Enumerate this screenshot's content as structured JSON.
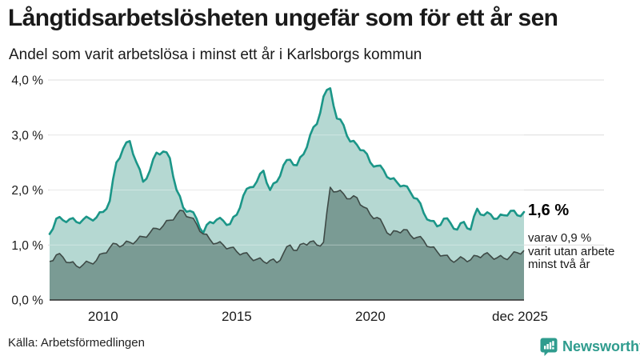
{
  "header": {
    "title": "Långtidsarbetslösheten ungefär som för ett år sen",
    "subtitle": "Andel som varit arbetslösa i minst ett år i Karlsborgs kommun"
  },
  "annotations": {
    "latest_value": "1,6 %",
    "secondary_line1": "varav 0,9 %",
    "secondary_line2": "varit utan arbete",
    "secondary_line3": "minst två år"
  },
  "footer": {
    "source": "Källa: Arbetsförmedlingen",
    "brand": "Newsworthy"
  },
  "colors": {
    "accent_teal": "#1b9688",
    "area_light": "#b5d8d2",
    "area_dark": "#7a9b94",
    "line_dark": "#3e4a46",
    "grid": "#dcdcdc",
    "grid_over_fill": "rgba(255,255,255,0.35)",
    "baseline": "#2d2d2d",
    "text": "#1a1a1a",
    "brand_teal": "#2f9c8e"
  },
  "chart_data": {
    "type": "area",
    "title": "Andel som varit arbetslösa i minst ett år i Karlsborgs kommun",
    "x_start_year": 2008.0,
    "x_step_years": 0.25,
    "ylim": [
      0,
      4
    ],
    "grid": true,
    "legend_position": "none",
    "yticks": [
      {
        "value": 0,
        "label": "0,0 %"
      },
      {
        "value": 1,
        "label": "1,0 %"
      },
      {
        "value": 2,
        "label": "2,0 %"
      },
      {
        "value": 3,
        "label": "3,0 %"
      },
      {
        "value": 4,
        "label": "4,0 %"
      }
    ],
    "xticks": [
      {
        "year": 2010.0,
        "label": "2010"
      },
      {
        "year": 2015.0,
        "label": "2015"
      },
      {
        "year": 2020.0,
        "label": "2020"
      },
      {
        "year": 2025.7,
        "label": "dec 2025"
      }
    ],
    "series": [
      {
        "name": "Andel arbetslösa minst ett år",
        "end_label": "1,6 %",
        "values": [
          1.2,
          1.48,
          1.45,
          1.47,
          1.42,
          1.46,
          1.48,
          1.5,
          1.6,
          1.8,
          2.5,
          2.75,
          2.89,
          2.5,
          2.15,
          2.35,
          2.68,
          2.7,
          2.58,
          2.0,
          1.68,
          1.62,
          1.48,
          1.22,
          1.42,
          1.46,
          1.44,
          1.38,
          1.55,
          1.9,
          2.05,
          2.15,
          2.35,
          2.0,
          2.15,
          2.45,
          2.55,
          2.45,
          2.65,
          3.0,
          3.2,
          3.7,
          3.85,
          3.3,
          3.18,
          2.88,
          2.82,
          2.72,
          2.5,
          2.44,
          2.36,
          2.2,
          2.14,
          2.08,
          1.96,
          1.84,
          1.58,
          1.44,
          1.34,
          1.48,
          1.4,
          1.28,
          1.42,
          1.28,
          1.66,
          1.54,
          1.56,
          1.48,
          1.54,
          1.62,
          1.54,
          1.6
        ]
      },
      {
        "name": "Varav utan arbete minst två år",
        "end_label": "0,9 %",
        "values": [
          0.7,
          0.82,
          0.78,
          0.68,
          0.62,
          0.64,
          0.68,
          0.72,
          0.85,
          0.95,
          1.02,
          1.0,
          1.05,
          1.08,
          1.15,
          1.22,
          1.3,
          1.35,
          1.45,
          1.55,
          1.62,
          1.5,
          1.38,
          1.2,
          1.1,
          1.03,
          1.0,
          0.95,
          0.88,
          0.85,
          0.78,
          0.74,
          0.7,
          0.72,
          0.68,
          0.85,
          1.0,
          0.9,
          1.03,
          1.06,
          1.0,
          1.05,
          2.05,
          1.97,
          1.93,
          1.84,
          1.86,
          1.69,
          1.55,
          1.5,
          1.35,
          1.18,
          1.25,
          1.28,
          1.18,
          1.14,
          1.08,
          0.96,
          0.88,
          0.81,
          0.73,
          0.73,
          0.75,
          0.73,
          0.8,
          0.83,
          0.8,
          0.77,
          0.76,
          0.8,
          0.86,
          0.9
        ]
      }
    ]
  }
}
